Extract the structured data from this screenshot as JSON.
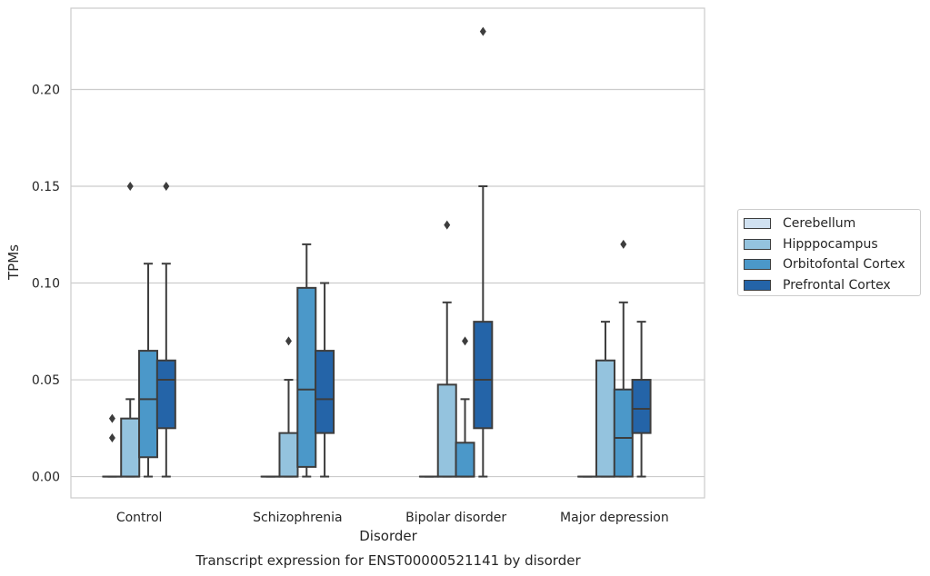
{
  "chart_data": {
    "type": "box",
    "title": "",
    "caption": "Transcript expression for ENST00000521141 by disorder",
    "xlabel": "Disorder",
    "ylabel": "TPMs",
    "ylim": [
      -0.011,
      0.242
    ],
    "yticks": [
      "0.00",
      "0.05",
      "0.10",
      "0.15",
      "0.20"
    ],
    "ytick_values": [
      0,
      0.05,
      0.1,
      0.15,
      0.2
    ],
    "grid": "horizontal",
    "legend_position": "right",
    "categories": [
      "Control",
      "Schizophrenia",
      "Bipolar disorder",
      "Major depression"
    ],
    "series": [
      {
        "name": "Cerebellum",
        "color": "#d0e1f1",
        "boxes": [
          {
            "q1": 0,
            "median": 0,
            "q3": 0,
            "whisker_low": 0,
            "whisker_high": 0,
            "outliers": [
              0.02,
              0.03
            ]
          },
          {
            "q1": 0,
            "median": 0,
            "q3": 0,
            "whisker_low": 0,
            "whisker_high": 0,
            "outliers": []
          },
          {
            "q1": 0,
            "median": 0,
            "q3": 0,
            "whisker_low": 0,
            "whisker_high": 0,
            "outliers": []
          },
          {
            "q1": 0,
            "median": 0,
            "q3": 0,
            "whisker_low": 0,
            "whisker_high": 0,
            "outliers": []
          }
        ]
      },
      {
        "name": "Hipppocampus",
        "color": "#94c3de",
        "boxes": [
          {
            "q1": 0,
            "median": 0,
            "q3": 0.03,
            "whisker_low": 0,
            "whisker_high": 0.04,
            "outliers": [
              0.15
            ]
          },
          {
            "q1": 0,
            "median": 0,
            "q3": 0.0225,
            "whisker_low": 0,
            "whisker_high": 0.05,
            "outliers": [
              0.07
            ]
          },
          {
            "q1": 0,
            "median": 0,
            "q3": 0.0475,
            "whisker_low": 0,
            "whisker_high": 0.09,
            "outliers": [
              0.13
            ]
          },
          {
            "q1": 0,
            "median": 0,
            "q3": 0.06,
            "whisker_low": 0,
            "whisker_high": 0.08,
            "outliers": []
          }
        ]
      },
      {
        "name": "Orbitofontal Cortex",
        "color": "#4b98c9",
        "boxes": [
          {
            "q1": 0.01,
            "median": 0.04,
            "q3": 0.065,
            "whisker_low": 0,
            "whisker_high": 0.11,
            "outliers": []
          },
          {
            "q1": 0.005,
            "median": 0.045,
            "q3": 0.0975,
            "whisker_low": 0,
            "whisker_high": 0.12,
            "outliers": []
          },
          {
            "q1": 0,
            "median": 0,
            "q3": 0.0175,
            "whisker_low": 0,
            "whisker_high": 0.04,
            "outliers": [
              0.07
            ]
          },
          {
            "q1": 0,
            "median": 0.02,
            "q3": 0.045,
            "whisker_low": 0,
            "whisker_high": 0.09,
            "outliers": [
              0.12
            ]
          }
        ]
      },
      {
        "name": "Prefrontal Cortex",
        "color": "#2464a8",
        "boxes": [
          {
            "q1": 0.025,
            "median": 0.05,
            "q3": 0.06,
            "whisker_low": 0,
            "whisker_high": 0.11,
            "outliers": [
              0.15
            ]
          },
          {
            "q1": 0.0225,
            "median": 0.04,
            "q3": 0.065,
            "whisker_low": 0,
            "whisker_high": 0.1,
            "outliers": []
          },
          {
            "q1": 0.025,
            "median": 0.05,
            "q3": 0.08,
            "whisker_low": 0,
            "whisker_high": 0.15,
            "outliers": [
              0.23
            ]
          },
          {
            "q1": 0.0225,
            "median": 0.035,
            "q3": 0.05,
            "whisker_low": 0,
            "whisker_high": 0.08,
            "outliers": []
          }
        ]
      }
    ]
  }
}
